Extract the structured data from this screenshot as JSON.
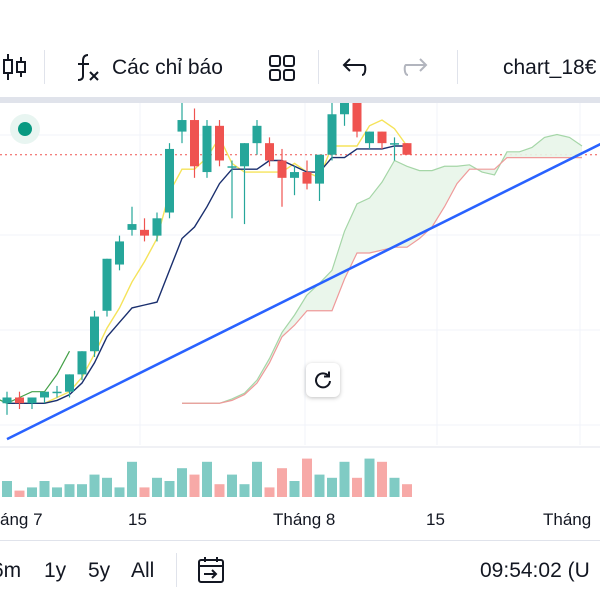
{
  "toolbar": {
    "indicators_label": "Các chỉ báo",
    "symbol_label": "chart_18€"
  },
  "icons": {
    "candle": "candlestick-icon",
    "indicators": "fx-icon",
    "layouts": "grid-icon",
    "undo": "undo-icon",
    "redo": "redo-icon",
    "reset": "reset-icon",
    "compare": "calendar-goto-icon",
    "status": "status-dot-icon"
  },
  "colors": {
    "up": "#26a69a",
    "down": "#ef5350",
    "trendline": "#2962ff",
    "tenkan": "#f5e35a",
    "kijun": "#1a2f6e",
    "chikou": "#43a047",
    "span_a": "#a5d6a7",
    "span_b": "#ef9a9a",
    "status_dot": "#089981"
  },
  "chart_data": {
    "type": "candlestick",
    "x_tick_labels": [
      "áng 7",
      "15",
      "Tháng 8",
      "15",
      "Tháng"
    ],
    "candles": [
      {
        "o": 33,
        "h": 35,
        "l": 31,
        "c": 34
      },
      {
        "o": 34,
        "h": 35,
        "l": 32,
        "c": 33
      },
      {
        "o": 33,
        "h": 34,
        "l": 32,
        "c": 34
      },
      {
        "o": 34,
        "h": 35,
        "l": 33,
        "c": 35
      },
      {
        "o": 35,
        "h": 36,
        "l": 34,
        "c": 35
      },
      {
        "o": 35,
        "h": 38,
        "l": 34,
        "c": 38
      },
      {
        "o": 38,
        "h": 42,
        "l": 37,
        "c": 42
      },
      {
        "o": 42,
        "h": 49,
        "l": 41,
        "c": 48
      },
      {
        "o": 49,
        "h": 58,
        "l": 48,
        "c": 58
      },
      {
        "o": 57,
        "h": 62,
        "l": 56,
        "c": 61
      },
      {
        "o": 63,
        "h": 67,
        "l": 62,
        "c": 64
      },
      {
        "o": 63,
        "h": 65,
        "l": 61,
        "c": 62
      },
      {
        "o": 62,
        "h": 66,
        "l": 61,
        "c": 65
      },
      {
        "o": 66,
        "h": 78,
        "l": 65,
        "c": 77
      },
      {
        "o": 80,
        "h": 86,
        "l": 78,
        "c": 82
      },
      {
        "o": 82,
        "h": 84,
        "l": 72,
        "c": 74
      },
      {
        "o": 73,
        "h": 82,
        "l": 72,
        "c": 81
      },
      {
        "o": 81,
        "h": 82,
        "l": 74,
        "c": 75
      },
      {
        "o": 74,
        "h": 75,
        "l": 65,
        "c": 74
      },
      {
        "o": 74,
        "h": 78,
        "l": 64,
        "c": 78
      },
      {
        "o": 78,
        "h": 82,
        "l": 76,
        "c": 81
      },
      {
        "o": 78,
        "h": 79,
        "l": 74,
        "c": 75
      },
      {
        "o": 75,
        "h": 77,
        "l": 67,
        "c": 72
      },
      {
        "o": 72,
        "h": 74,
        "l": 69,
        "c": 73
      },
      {
        "o": 73,
        "h": 75,
        "l": 70,
        "c": 71
      },
      {
        "o": 71,
        "h": 76,
        "l": 68,
        "c": 76
      },
      {
        "o": 76,
        "h": 87,
        "l": 75,
        "c": 83
      },
      {
        "o": 83,
        "h": 87,
        "l": 81,
        "c": 86
      },
      {
        "o": 86,
        "h": 86,
        "l": 79,
        "c": 80
      },
      {
        "o": 78,
        "h": 80,
        "l": 77,
        "c": 80
      },
      {
        "o": 80,
        "h": 80,
        "l": 77,
        "c": 78
      },
      {
        "o": 78,
        "h": 79,
        "l": 75,
        "c": 78
      },
      {
        "o": 78,
        "h": 78,
        "l": 76,
        "c": 76
      }
    ],
    "volume": [
      5,
      2,
      3,
      5,
      3,
      4,
      4,
      7,
      6,
      3,
      11,
      3,
      6,
      5,
      9,
      7,
      11,
      4,
      7,
      4,
      11,
      3,
      9,
      5,
      12,
      7,
      6,
      11,
      6,
      12,
      11,
      6,
      4
    ],
    "trendline": {
      "from": [
        0,
        26.8
      ],
      "to": [
        52,
        82.7
      ]
    },
    "last_price_line": 76
  }
}
